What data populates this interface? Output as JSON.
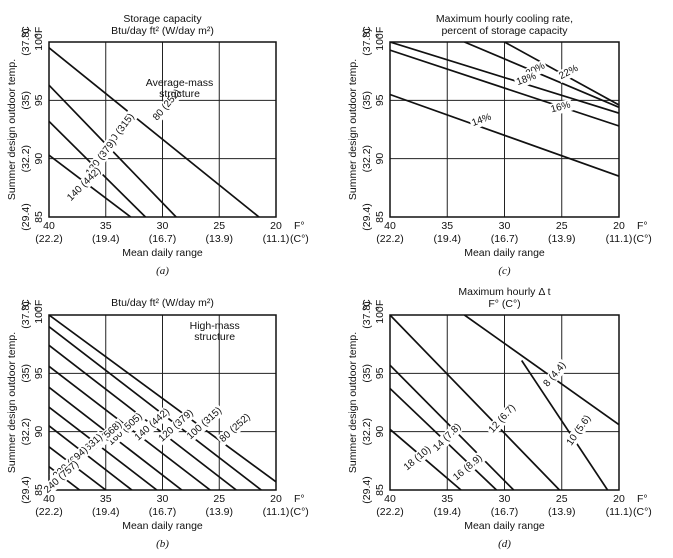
{
  "charts": [
    {
      "title_lines": [
        "Storage capacity",
        "Btu/day ft² (W/day m²)"
      ],
      "note_lines": [
        "Average-mass",
        "structure"
      ],
      "caption": "(a)",
      "xlabel": "Mean daily range",
      "ylabel": "Summer design outdoor temp.",
      "unit_x_f": "F°",
      "unit_x_c": "(C°)",
      "unit_y_c": "°C",
      "unit_y_f": "°F",
      "xticks": [
        "40",
        "35",
        "30",
        "25",
        "20"
      ],
      "xticks_c": [
        "(22.2)",
        "(19.4)",
        "(16.7)",
        "(13.9)",
        "(11.1)"
      ],
      "yticks": [
        "100",
        "95",
        "90",
        "85"
      ],
      "yticks_c": [
        "(37.8)",
        "(35)",
        "(32.2)",
        "(29.4)"
      ]
    },
    {
      "title_lines": [
        "Maximum hourly cooling rate,",
        "percent of storage capacity"
      ],
      "note_lines": [],
      "caption": "(c)",
      "xlabel": "Mean daily range",
      "ylabel": "Summer design outdoor temp.",
      "unit_x_f": "F°",
      "unit_x_c": "(C°)",
      "unit_y_c": "°C",
      "unit_y_f": "°F",
      "xticks": [
        "40",
        "35",
        "30",
        "25",
        "20"
      ],
      "xticks_c": [
        "(22.2)",
        "(19.4)",
        "(16.7)",
        "(13.9)",
        "(11.1)"
      ],
      "yticks": [
        "100",
        "95",
        "90",
        "85"
      ],
      "yticks_c": [
        "(37.8)",
        "(35)",
        "(32.2)",
        "(29.4)"
      ]
    },
    {
      "title_lines": [
        "Btu/day ft² (W/day m²)"
      ],
      "note_lines": [
        "High-mass",
        "structure"
      ],
      "caption": "(b)",
      "xlabel": "Mean daily range",
      "ylabel": "Summer design outdoor temp.",
      "unit_x_f": "F°",
      "unit_x_c": "(C°)",
      "unit_y_c": "°C",
      "unit_y_f": "°F",
      "xticks": [
        "40",
        "35",
        "30",
        "25",
        "20"
      ],
      "xticks_c": [
        "(22.2)",
        "(19.4)",
        "(16.7)",
        "(13.9)",
        "(11.1)"
      ],
      "yticks": [
        "100",
        "95",
        "90",
        "85"
      ],
      "yticks_c": [
        "(37.8)",
        "(35)",
        "(32.2)",
        "(29.4)"
      ]
    },
    {
      "title_lines": [
        "Maximum hourly Δ t",
        "F° (C°)"
      ],
      "note_lines": [],
      "caption": "(d)",
      "xlabel": "Mean daily range",
      "ylabel": "Summer design outdoor temp.",
      "unit_x_f": "F°",
      "unit_x_c": "(C°)",
      "unit_y_c": "°C",
      "unit_y_f": "°F",
      "xticks": [
        "40",
        "35",
        "30",
        "25",
        "20"
      ],
      "xticks_c": [
        "(22.2)",
        "(19.4)",
        "(16.7)",
        "(13.9)",
        "(11.1)"
      ],
      "yticks": [
        "100",
        "95",
        "90",
        "85"
      ],
      "yticks_c": [
        "(37.8)",
        "(35)",
        "(32.2)",
        "(29.4)"
      ]
    }
  ],
  "chart_data": [
    {
      "type": "line",
      "xlim": [
        40,
        20
      ],
      "ylim": [
        85,
        100
      ],
      "grid": true,
      "series": [
        {
          "name": "80 (252)",
          "x": [
            40,
            21.5
          ],
          "y": [
            99.5,
            85
          ]
        },
        {
          "name": "100 (315)",
          "x": [
            40,
            28.8
          ],
          "y": [
            96.3,
            85
          ]
        },
        {
          "name": "120 (379)",
          "x": [
            40,
            31.5
          ],
          "y": [
            93.2,
            85
          ]
        },
        {
          "name": "140 (442)",
          "x": [
            40,
            32.8
          ],
          "y": [
            90.3,
            85
          ]
        }
      ]
    },
    {
      "type": "line",
      "xlim": [
        40,
        20
      ],
      "ylim": [
        85,
        100
      ],
      "grid": true,
      "series": [
        {
          "name": "22%",
          "x": [
            30,
            20
          ],
          "y": [
            100,
            94.6
          ]
        },
        {
          "name": "20%",
          "x": [
            33.5,
            20
          ],
          "y": [
            100,
            94.4
          ]
        },
        {
          "name": "18%",
          "x": [
            40,
            20
          ],
          "y": [
            100,
            93.9
          ]
        },
        {
          "name": "16%",
          "x": [
            40,
            20
          ],
          "y": [
            99.3,
            92.8
          ]
        },
        {
          "name": "14%",
          "x": [
            40,
            20
          ],
          "y": [
            95.5,
            88.5
          ]
        }
      ]
    },
    {
      "type": "line",
      "xlim": [
        40,
        20
      ],
      "ylim": [
        85,
        100
      ],
      "grid": true,
      "series": [
        {
          "name": "80 (252)",
          "x": [
            40,
            20
          ],
          "y": [
            100,
            85.7
          ]
        },
        {
          "name": "100 (315)",
          "x": [
            40,
            21.3
          ],
          "y": [
            99,
            85
          ]
        },
        {
          "name": "120 (379)",
          "x": [
            40,
            23.5
          ],
          "y": [
            97.4,
            85
          ]
        },
        {
          "name": "140 (442)",
          "x": [
            40,
            25.8
          ],
          "y": [
            95.6,
            85
          ]
        },
        {
          "name": "160 (505)",
          "x": [
            40,
            28.3
          ],
          "y": [
            93.8,
            85
          ]
        },
        {
          "name": "180 (568)",
          "x": [
            40,
            30.5
          ],
          "y": [
            92.1,
            85
          ]
        },
        {
          "name": "200 (631)",
          "x": [
            40,
            32.7
          ],
          "y": [
            90.5,
            85
          ]
        },
        {
          "name": "220 (694)",
          "x": [
            40,
            35
          ],
          "y": [
            88.7,
            85
          ]
        },
        {
          "name": "240 (757)",
          "x": [
            40,
            37.3
          ],
          "y": [
            87,
            85
          ]
        }
      ]
    },
    {
      "type": "line",
      "xlim": [
        40,
        20
      ],
      "ylim": [
        85,
        100
      ],
      "grid": true,
      "series": [
        {
          "name": "8 (4.4)",
          "x": [
            33.5,
            20
          ],
          "y": [
            100,
            90.6
          ]
        },
        {
          "name": "10 (5.6)",
          "x": [
            28.5,
            21
          ],
          "y": [
            96.1,
            85
          ]
        },
        {
          "name": "12 (6.7)",
          "x": [
            40,
            25.2
          ],
          "y": [
            100,
            85
          ]
        },
        {
          "name": "14 (7.8)",
          "x": [
            40,
            29.2
          ],
          "y": [
            95.7,
            85
          ]
        },
        {
          "name": "16 (8.9)",
          "x": [
            40,
            30.7
          ],
          "y": [
            93.7,
            85
          ]
        },
        {
          "name": "18 (10)",
          "x": [
            40,
            33.8
          ],
          "y": [
            90.2,
            85
          ]
        }
      ]
    }
  ],
  "curve_labels": [
    [
      {
        "text": "80 (252)",
        "x": 29.6,
        "y": 94.6,
        "angle": -50
      },
      {
        "text": "100 (315)",
        "x": 33.8,
        "y": 92.3,
        "angle": -53
      },
      {
        "text": "120 (379)",
        "x": 35.4,
        "y": 90.1,
        "angle": -53
      },
      {
        "text": "140 (442)",
        "x": 36.9,
        "y": 87.8,
        "angle": -45
      }
    ],
    [
      {
        "text": "22%",
        "x": 24.4,
        "y": 97.4,
        "angle": -28
      },
      {
        "text": "20%",
        "x": 27.3,
        "y": 97.6,
        "angle": -28
      },
      {
        "text": "18%",
        "x": 28.1,
        "y": 96.8,
        "angle": -20
      },
      {
        "text": "16%",
        "x": 25.1,
        "y": 94.4,
        "angle": -15
      },
      {
        "text": "14%",
        "x": 32.0,
        "y": 93.3,
        "angle": -20
      }
    ],
    [
      {
        "text": "80 (252)",
        "x": 23.6,
        "y": 90.3,
        "angle": -42
      },
      {
        "text": "100 (315)",
        "x": 26.3,
        "y": 90.7,
        "angle": -42
      },
      {
        "text": "120 (379)",
        "x": 28.8,
        "y": 90.5,
        "angle": -42
      },
      {
        "text": "140 (442)",
        "x": 30.9,
        "y": 90.6,
        "angle": -42
      },
      {
        "text": "160 (505)",
        "x": 33.3,
        "y": 90.2,
        "angle": -42
      },
      {
        "text": "180 (568)",
        "x": 35.1,
        "y": 89.5,
        "angle": -42
      },
      {
        "text": "200 (631)",
        "x": 36.8,
        "y": 88.4,
        "angle": -42
      },
      {
        "text": "220 (694)",
        "x": 38.1,
        "y": 87.3,
        "angle": -42
      },
      {
        "text": "240 (757)",
        "x": 38.9,
        "y": 86.1,
        "angle": -42
      }
    ],
    [
      {
        "text": "8 (4.4)",
        "x": 25.6,
        "y": 94.9,
        "angle": -50
      },
      {
        "text": "10 (5.6)",
        "x": 23.5,
        "y": 90.1,
        "angle": -55
      },
      {
        "text": "12 (6.7)",
        "x": 30.2,
        "y": 91.1,
        "angle": -48
      },
      {
        "text": "14 (7.8)",
        "x": 35.0,
        "y": 89.5,
        "angle": -45
      },
      {
        "text": "16 (8.9)",
        "x": 33.2,
        "y": 86.9,
        "angle": -40
      },
      {
        "text": "18 (10)",
        "x": 37.6,
        "y": 87.7,
        "angle": -40
      }
    ]
  ]
}
